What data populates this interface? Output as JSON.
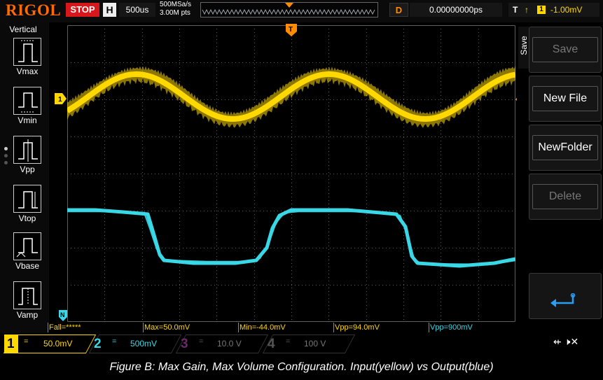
{
  "header": {
    "logo": "RIGOL",
    "run_status": "STOP",
    "horizontal_badge": "H",
    "timebase": "500us",
    "sample_rate": "500MSa/s",
    "memory_depth": "3.00M pts",
    "delay_badge": "D",
    "delay": "0.00000000ps",
    "trigger_type": "T",
    "trigger_edge": "rising-edge-icon",
    "trigger_source": "1",
    "trigger_level": "-1.00mV"
  },
  "left_panel": {
    "title": "Vertical",
    "items": [
      {
        "label": "Vmax",
        "icon": "vmax-measure-icon"
      },
      {
        "label": "Vmin",
        "icon": "vmin-measure-icon"
      },
      {
        "label": "Vpp",
        "icon": "vpp-measure-icon"
      },
      {
        "label": "Vtop",
        "icon": "vtop-measure-icon"
      },
      {
        "label": "Vbase",
        "icon": "vbase-measure-icon"
      },
      {
        "label": "Vamp",
        "icon": "vamp-measure-icon"
      }
    ]
  },
  "markers": {
    "ch1": "1",
    "trigger": "T",
    "ch2": "N"
  },
  "measurements": [
    {
      "text": "Fall=*****",
      "color": "#ffd800"
    },
    {
      "text": "Max=50.0mV",
      "color": "#ffd800"
    },
    {
      "text": "Min=-44.0mV",
      "color": "#ffd800"
    },
    {
      "text": "Vpp=94.0mV",
      "color": "#ffd800"
    },
    {
      "text": "Vpp=900mV",
      "color": "#3ad8e6"
    }
  ],
  "right_menu": {
    "tab_label": "Save",
    "buttons": [
      {
        "label": "Save",
        "enabled": false
      },
      {
        "label": "New File",
        "enabled": true
      },
      {
        "label": "NewFolder",
        "enabled": true
      },
      {
        "label": "Delete",
        "enabled": false
      }
    ],
    "back_icon": "return-arrow-icon"
  },
  "channels": [
    {
      "number": "1",
      "coupling": "=",
      "scale": "50.0mV",
      "color": "#ffd800",
      "active": true
    },
    {
      "number": "2",
      "coupling": "=",
      "scale": "500mV",
      "color": "#3ad8e6",
      "active": true
    },
    {
      "number": "3",
      "coupling": "=",
      "scale": "10.0 V",
      "color": "#c03cc0",
      "active": false
    },
    {
      "number": "4",
      "coupling": "=",
      "scale": "100 V",
      "color": "#3c64dc",
      "active": false
    }
  ],
  "status_icons": [
    "usb-icon",
    "speaker-muted-icon"
  ],
  "caption": "Figure B: Max Gain, Max Volume Configuration. Input(yellow) vs Output(blue)",
  "colors": {
    "ch1": "#ffd800",
    "ch2": "#3ad8e6",
    "accent": "#ff6a00",
    "stop": "#d8171c"
  }
}
